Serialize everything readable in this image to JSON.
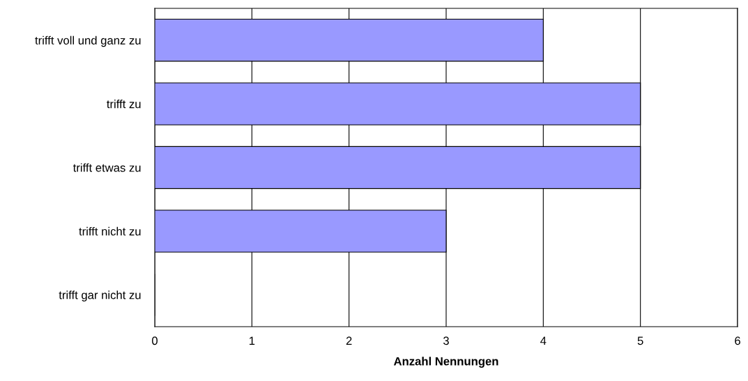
{
  "chart_data": {
    "type": "bar",
    "orientation": "horizontal",
    "xlabel": "Anzahl Nennungen",
    "categories": [
      "trifft voll und ganz zu",
      "trifft zu",
      "trifft etwas zu",
      "trifft nicht zu",
      "trifft gar nicht zu"
    ],
    "values": [
      4,
      5,
      5,
      3,
      0
    ],
    "color": "#9999ff",
    "xlim": [
      0,
      6
    ],
    "xticks": [
      0,
      1,
      2,
      3,
      4,
      5,
      6
    ],
    "grid": "x",
    "legend": false
  }
}
